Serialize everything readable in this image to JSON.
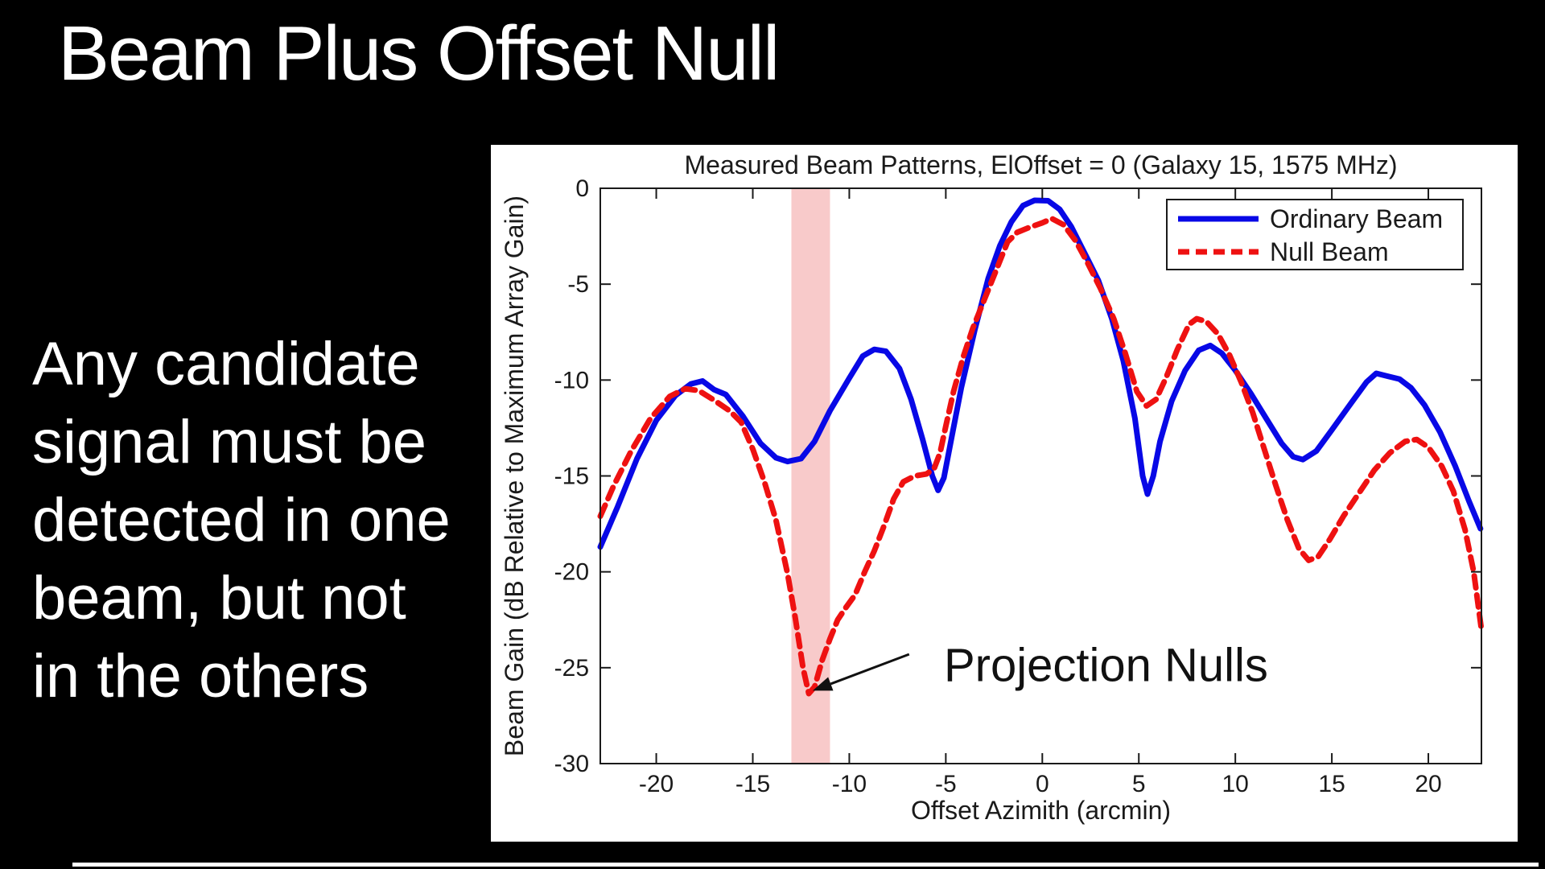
{
  "slide": {
    "title": "Beam Plus Offset Null",
    "body_lines": [
      "Any candidate",
      "signal must be",
      "detected in one",
      "beam, but not",
      "in the others"
    ]
  },
  "colors": {
    "background": "#000000",
    "slide_text": "#ffffff",
    "panel": "#ffffff",
    "axis": "#1a1a1a",
    "ordinary_beam": "#0808e6",
    "null_beam": "#ee1111",
    "highlight_band": "#f8caca",
    "annotation": "#111111"
  },
  "chart_data": {
    "type": "line",
    "title": "Measured Beam Patterns, ElOffset = 0 (Galaxy 15, 1575 MHz)",
    "xlabel": "Offset Azimith (arcmin)",
    "ylabel": "Beam Gain (dB Relative to Maximum Array Gain)",
    "xlim": [
      -22.9,
      22.75
    ],
    "ylim": [
      -30,
      0
    ],
    "x_ticks": [
      -20,
      -15,
      -10,
      -5,
      0,
      5,
      10,
      15,
      20
    ],
    "y_ticks": [
      0,
      -5,
      -10,
      -15,
      -20,
      -25,
      -30
    ],
    "grid": false,
    "legend_position": "top-right",
    "highlight_band": {
      "x_from": -13.0,
      "x_to": -11.0,
      "color": "#f8caca"
    },
    "annotation": {
      "text": "Projection Nulls",
      "text_pos": [
        -5.1,
        -25.7
      ],
      "arrow_from": [
        -6.9,
        -24.3
      ],
      "arrow_to": [
        -11.9,
        -26.2
      ]
    },
    "series": [
      {
        "name": "Ordinary Beam",
        "color": "#0808e6",
        "style": "solid",
        "points": [
          [
            -22.9,
            -18.7
          ],
          [
            -22.0,
            -16.6
          ],
          [
            -21.0,
            -14.1
          ],
          [
            -20.0,
            -12.1
          ],
          [
            -19.0,
            -10.8
          ],
          [
            -18.2,
            -10.2
          ],
          [
            -17.6,
            -10.05
          ],
          [
            -17.0,
            -10.5
          ],
          [
            -16.4,
            -10.75
          ],
          [
            -15.5,
            -11.9
          ],
          [
            -14.6,
            -13.3
          ],
          [
            -13.8,
            -14.05
          ],
          [
            -13.2,
            -14.25
          ],
          [
            -12.5,
            -14.1
          ],
          [
            -11.8,
            -13.2
          ],
          [
            -11.0,
            -11.6
          ],
          [
            -10.0,
            -9.9
          ],
          [
            -9.3,
            -8.75
          ],
          [
            -8.7,
            -8.4
          ],
          [
            -8.1,
            -8.5
          ],
          [
            -7.4,
            -9.4
          ],
          [
            -6.8,
            -11.0
          ],
          [
            -6.2,
            -13.1
          ],
          [
            -5.7,
            -15.0
          ],
          [
            -5.4,
            -15.75
          ],
          [
            -5.1,
            -15.1
          ],
          [
            -4.7,
            -13.0
          ],
          [
            -4.2,
            -10.4
          ],
          [
            -3.5,
            -7.4
          ],
          [
            -2.8,
            -4.7
          ],
          [
            -2.2,
            -3.0
          ],
          [
            -1.6,
            -1.75
          ],
          [
            -1.0,
            -0.9
          ],
          [
            -0.4,
            -0.63
          ],
          [
            0.3,
            -0.65
          ],
          [
            0.9,
            -1.1
          ],
          [
            1.5,
            -2.0
          ],
          [
            2.2,
            -3.4
          ],
          [
            2.9,
            -4.8
          ],
          [
            3.6,
            -6.8
          ],
          [
            4.2,
            -9.0
          ],
          [
            4.8,
            -12.0
          ],
          [
            5.2,
            -15.0
          ],
          [
            5.45,
            -15.95
          ],
          [
            5.75,
            -15.0
          ],
          [
            6.1,
            -13.2
          ],
          [
            6.7,
            -11.1
          ],
          [
            7.4,
            -9.5
          ],
          [
            8.1,
            -8.45
          ],
          [
            8.7,
            -8.2
          ],
          [
            9.3,
            -8.6
          ],
          [
            10.0,
            -9.5
          ],
          [
            10.8,
            -10.7
          ],
          [
            11.6,
            -12.0
          ],
          [
            12.4,
            -13.3
          ],
          [
            13.0,
            -14.0
          ],
          [
            13.5,
            -14.15
          ],
          [
            14.2,
            -13.7
          ],
          [
            15.0,
            -12.6
          ],
          [
            16.0,
            -11.2
          ],
          [
            16.8,
            -10.1
          ],
          [
            17.3,
            -9.65
          ],
          [
            17.9,
            -9.8
          ],
          [
            18.5,
            -9.95
          ],
          [
            19.1,
            -10.4
          ],
          [
            19.8,
            -11.3
          ],
          [
            20.6,
            -12.7
          ],
          [
            21.4,
            -14.5
          ],
          [
            22.1,
            -16.3
          ],
          [
            22.7,
            -17.75
          ]
        ]
      },
      {
        "name": "Null Beam",
        "color": "#ee1111",
        "style": "dashed",
        "points": [
          [
            -22.9,
            -17.1
          ],
          [
            -22.2,
            -15.5
          ],
          [
            -21.3,
            -13.7
          ],
          [
            -20.3,
            -12.0
          ],
          [
            -19.3,
            -10.85
          ],
          [
            -18.5,
            -10.45
          ],
          [
            -17.8,
            -10.55
          ],
          [
            -17.0,
            -11.05
          ],
          [
            -16.2,
            -11.6
          ],
          [
            -15.6,
            -12.2
          ],
          [
            -15.0,
            -13.6
          ],
          [
            -14.4,
            -15.3
          ],
          [
            -13.8,
            -17.3
          ],
          [
            -13.2,
            -20.1
          ],
          [
            -12.8,
            -22.4
          ],
          [
            -12.4,
            -25.0
          ],
          [
            -12.1,
            -26.35
          ],
          [
            -11.8,
            -26.0
          ],
          [
            -11.4,
            -24.6
          ],
          [
            -11.0,
            -23.5
          ],
          [
            -10.6,
            -22.5
          ],
          [
            -10.2,
            -21.9
          ],
          [
            -9.7,
            -21.2
          ],
          [
            -9.2,
            -20.0
          ],
          [
            -8.7,
            -18.9
          ],
          [
            -8.2,
            -17.6
          ],
          [
            -7.7,
            -16.2
          ],
          [
            -7.2,
            -15.3
          ],
          [
            -6.6,
            -15.0
          ],
          [
            -6.0,
            -14.9
          ],
          [
            -5.6,
            -14.6
          ],
          [
            -5.3,
            -13.8
          ],
          [
            -5.0,
            -12.4
          ],
          [
            -4.6,
            -10.6
          ],
          [
            -4.1,
            -8.8
          ],
          [
            -3.6,
            -7.3
          ],
          [
            -3.0,
            -5.8
          ],
          [
            -2.4,
            -4.3
          ],
          [
            -1.8,
            -2.8
          ],
          [
            -1.3,
            -2.3
          ],
          [
            -0.7,
            -2.05
          ],
          [
            0.0,
            -1.8
          ],
          [
            0.5,
            -1.58
          ],
          [
            1.1,
            -1.9
          ],
          [
            1.7,
            -2.7
          ],
          [
            2.3,
            -3.8
          ],
          [
            3.0,
            -5.2
          ],
          [
            3.7,
            -6.8
          ],
          [
            4.3,
            -8.6
          ],
          [
            4.9,
            -10.6
          ],
          [
            5.4,
            -11.35
          ],
          [
            5.9,
            -11.0
          ],
          [
            6.4,
            -9.9
          ],
          [
            7.0,
            -8.4
          ],
          [
            7.6,
            -7.1
          ],
          [
            8.0,
            -6.8
          ],
          [
            8.5,
            -6.95
          ],
          [
            9.1,
            -7.6
          ],
          [
            9.7,
            -8.7
          ],
          [
            10.3,
            -10.1
          ],
          [
            10.9,
            -11.7
          ],
          [
            11.5,
            -13.6
          ],
          [
            12.1,
            -15.5
          ],
          [
            12.7,
            -17.3
          ],
          [
            13.3,
            -18.8
          ],
          [
            13.8,
            -19.4
          ],
          [
            14.3,
            -19.2
          ],
          [
            14.9,
            -18.3
          ],
          [
            15.6,
            -17.1
          ],
          [
            16.4,
            -15.9
          ],
          [
            17.2,
            -14.7
          ],
          [
            18.0,
            -13.8
          ],
          [
            18.8,
            -13.2
          ],
          [
            19.4,
            -13.1
          ],
          [
            20.0,
            -13.5
          ],
          [
            20.7,
            -14.5
          ],
          [
            21.3,
            -15.8
          ],
          [
            21.9,
            -17.8
          ],
          [
            22.35,
            -20.0
          ],
          [
            22.75,
            -23.0
          ]
        ]
      }
    ]
  }
}
